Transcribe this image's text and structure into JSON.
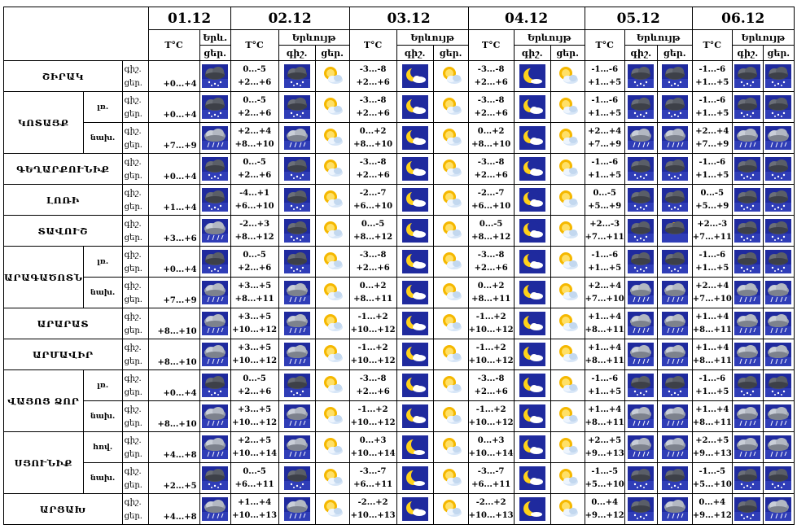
{
  "header": {
    "dates": [
      "01.12",
      "02.12",
      "03.12",
      "04.12",
      "05.12",
      "06.12"
    ],
    "temp_label": "T°C",
    "phenomenon_short": "Երև.",
    "phenomenon": "Երևույթ",
    "night": "գիշ.",
    "day": "ցեր."
  },
  "regions": [
    {
      "name": "ՇԻՐԱԿ",
      "rows": [
        {
          "sub": "",
          "d1": "+0...+4",
          "d1_icon": "cloud-snow",
          "days": [
            {
              "n": "0...-5",
              "d": "+2...+6",
              "icons": [
                "cloud-snow",
                "sun-cloud"
              ]
            },
            {
              "n": "-3...-8",
              "d": "+2...+6",
              "icons": [
                "moon-cloud",
                "sun-cloud"
              ]
            },
            {
              "n": "-3...-8",
              "d": "+2...+6",
              "icons": [
                "moon",
                "sun-cloud"
              ]
            },
            {
              "n": "-1...-6",
              "d": "+1...+5",
              "icons": [
                "cloud-snow",
                "cloud-snow"
              ]
            },
            {
              "n": "-1...-6",
              "d": "+1...+5",
              "icons": [
                "cloud-snow",
                "cloud-snow"
              ]
            }
          ]
        }
      ]
    },
    {
      "name": "ԿՈՏԱՅՔ",
      "rows": [
        {
          "sub": "լռ.",
          "d1": "+0...+4",
          "d1_icon": "cloud-snow",
          "days": [
            {
              "n": "0...-5",
              "d": "+2...+6",
              "icons": [
                "cloud-snow",
                "sun-cloud"
              ]
            },
            {
              "n": "-3...-8",
              "d": "+2...+6",
              "icons": [
                "moon-cloud",
                "sun-cloud"
              ]
            },
            {
              "n": "-3...-8",
              "d": "+2...+6",
              "icons": [
                "moon-cloud",
                "sun-cloud"
              ]
            },
            {
              "n": "-1...-6",
              "d": "+1...+5",
              "icons": [
                "cloud-snow",
                "cloud-snow"
              ]
            },
            {
              "n": "-1...-6",
              "d": "+1...+5",
              "icons": [
                "cloud-snow",
                "cloud-snow"
              ]
            }
          ]
        },
        {
          "sub": "նախ.",
          "d1": "+7...+9",
          "d1_icon": "cloud-rain",
          "days": [
            {
              "n": "+2...+4",
              "d": "+8...+10",
              "icons": [
                "cloud-rain",
                "sun-cloud"
              ]
            },
            {
              "n": "0...+2",
              "d": "+8...+10",
              "icons": [
                "moon-cloud",
                "sun-cloud"
              ]
            },
            {
              "n": "0...+2",
              "d": "+8...+10",
              "icons": [
                "moon-cloud",
                "sun-cloud"
              ]
            },
            {
              "n": "+2...+4",
              "d": "+7...+9",
              "icons": [
                "cloud-rain",
                "cloud-rain"
              ]
            },
            {
              "n": "+2...+4",
              "d": "+7...+9",
              "icons": [
                "cloud-rain",
                "cloud-rain"
              ]
            }
          ]
        }
      ]
    },
    {
      "name": "ԳԵՂԱՐՔՈՒՆԻՔ",
      "rows": [
        {
          "sub": "",
          "d1": "+0...+4",
          "d1_icon": "cloud-snow",
          "days": [
            {
              "n": "0...-5",
              "d": "+2...+6",
              "icons": [
                "cloud-snow",
                "sun-cloud"
              ]
            },
            {
              "n": "-3...-8",
              "d": "+2...+6",
              "icons": [
                "moon-cloud",
                "sun-cloud"
              ]
            },
            {
              "n": "-3...-8",
              "d": "+2...+6",
              "icons": [
                "moon-cloud",
                "sun-cloud"
              ]
            },
            {
              "n": "-1...-6",
              "d": "+1...+5",
              "icons": [
                "cloud-snow",
                "cloud-snow"
              ]
            },
            {
              "n": "-1...-6",
              "d": "+1...+5",
              "icons": [
                "cloud-snow",
                "cloud-snow"
              ]
            }
          ]
        }
      ]
    },
    {
      "name": "ԼՈՌԻ",
      "rows": [
        {
          "sub": "",
          "d1": "+1...+4",
          "d1_icon": "cloud-snow",
          "days": [
            {
              "n": "-4...+1",
              "d": "+6...+10",
              "icons": [
                "cloud-snow",
                "sun-cloud"
              ]
            },
            {
              "n": "-2...-7",
              "d": "+6...+10",
              "icons": [
                "moon-cloud",
                "sun-cloud"
              ]
            },
            {
              "n": "-2...-7",
              "d": "+6...+10",
              "icons": [
                "moon-cloud",
                "sun-cloud"
              ]
            },
            {
              "n": "0...-5",
              "d": "+5...+9",
              "icons": [
                "cloud-snow",
                "cloud-snow"
              ]
            },
            {
              "n": "0...-5",
              "d": "+5...+9",
              "icons": [
                "cloud-snow",
                "cloud-snow"
              ]
            }
          ]
        }
      ]
    },
    {
      "name": "ՏԱՎՈՒՇ",
      "rows": [
        {
          "sub": "",
          "d1": "+3...+6",
          "d1_icon": "cloud-rain",
          "days": [
            {
              "n": "-2...+3",
              "d": "+8...+12",
              "icons": [
                "cloud-snow",
                "sun-cloud"
              ]
            },
            {
              "n": "0...-5",
              "d": "+8...+12",
              "icons": [
                "moon-cloud",
                "sun-cloud"
              ]
            },
            {
              "n": "0...-5",
              "d": "+8...+12",
              "icons": [
                "moon-cloud",
                "sun-cloud"
              ]
            },
            {
              "n": "+2...-3",
              "d": "+7...+11",
              "icons": [
                "cloud-snow",
                "sun-cloud-dark"
              ]
            },
            {
              "n": "+2...-3",
              "d": "+7...+11",
              "icons": [
                "cloud-snow",
                "cloud-snow"
              ]
            }
          ]
        }
      ]
    },
    {
      "name": "ԱՐԱԳԱԾՈՏՆ",
      "rows": [
        {
          "sub": "լռ.",
          "d1": "+0...+4",
          "d1_icon": "cloud-snow",
          "days": [
            {
              "n": "0...-5",
              "d": "+2...+6",
              "icons": [
                "cloud-snow",
                "sun-cloud"
              ]
            },
            {
              "n": "-3...-8",
              "d": "+2...+6",
              "icons": [
                "moon-cloud",
                "sun-cloud"
              ]
            },
            {
              "n": "-3...-8",
              "d": "+2...+6",
              "icons": [
                "moon-cloud",
                "sun-cloud"
              ]
            },
            {
              "n": "-1...-6",
              "d": "+1...+5",
              "icons": [
                "cloud-snow",
                "cloud-snow"
              ]
            },
            {
              "n": "-1...-6",
              "d": "+1...+5",
              "icons": [
                "cloud-snow",
                "cloud-snow"
              ]
            }
          ]
        },
        {
          "sub": "նախ.",
          "d1": "+7...+9",
          "d1_icon": "cloud-rain",
          "days": [
            {
              "n": "+3...+5",
              "d": "+8...+11",
              "icons": [
                "cloud-rain",
                "sun-cloud"
              ]
            },
            {
              "n": "0...+2",
              "d": "+8...+11",
              "icons": [
                "moon-cloud",
                "sun-cloud"
              ]
            },
            {
              "n": "0...+2",
              "d": "+8...+11",
              "icons": [
                "moon-cloud",
                "sun-cloud"
              ]
            },
            {
              "n": "+2...+4",
              "d": "+7...+10",
              "icons": [
                "cloud-rain",
                "cloud-rain"
              ]
            },
            {
              "n": "+2...+4",
              "d": "+7...+10",
              "icons": [
                "cloud-rain",
                "cloud-rain"
              ]
            }
          ]
        }
      ]
    },
    {
      "name": "ԱՐԱՐԱՏ",
      "rows": [
        {
          "sub": "",
          "d1": "+8...+10",
          "d1_icon": "cloud-rain",
          "days": [
            {
              "n": "+3...+5",
              "d": "+10...+12",
              "icons": [
                "cloud-rain",
                "sun-cloud"
              ]
            },
            {
              "n": "-1...+2",
              "d": "+10...+12",
              "icons": [
                "moon-cloud",
                "sun-cloud"
              ]
            },
            {
              "n": "-1...+2",
              "d": "+10...+12",
              "icons": [
                "moon-cloud",
                "sun-cloud"
              ]
            },
            {
              "n": "+1...+4",
              "d": "+8...+11",
              "icons": [
                "cloud-rain",
                "cloud-rain"
              ]
            },
            {
              "n": "+1...+4",
              "d": "+8...+11",
              "icons": [
                "cloud-rain",
                "cloud-rain"
              ]
            }
          ]
        }
      ]
    },
    {
      "name": "ԱՐՄԱՎԻՐ",
      "rows": [
        {
          "sub": "",
          "d1": "+8...+10",
          "d1_icon": "cloud-rain",
          "days": [
            {
              "n": "+3...+5",
              "d": "+10...+12",
              "icons": [
                "cloud-rain",
                "sun-cloud"
              ]
            },
            {
              "n": "-1...+2",
              "d": "+10...+12",
              "icons": [
                "moon-cloud",
                "sun-cloud"
              ]
            },
            {
              "n": "-1...+2",
              "d": "+10...+12",
              "icons": [
                "moon-cloud",
                "sun-cloud"
              ]
            },
            {
              "n": "+1...+4",
              "d": "+8...+11",
              "icons": [
                "cloud-rain",
                "cloud-rain"
              ]
            },
            {
              "n": "+1...+4",
              "d": "+8...+11",
              "icons": [
                "cloud-rain",
                "cloud-rain"
              ]
            }
          ]
        }
      ]
    },
    {
      "name": "ՎԱՅՈՑ ՁՈՐ",
      "rows": [
        {
          "sub": "լռ.",
          "d1": "+0...+4",
          "d1_icon": "cloud-snow",
          "days": [
            {
              "n": "0...-5",
              "d": "+2...+6",
              "icons": [
                "cloud-snow",
                "sun-cloud"
              ]
            },
            {
              "n": "-3...-8",
              "d": "+2...+6",
              "icons": [
                "moon-cloud",
                "sun-cloud"
              ]
            },
            {
              "n": "-3...-8",
              "d": "+2...+6",
              "icons": [
                "moon-cloud",
                "sun-cloud"
              ]
            },
            {
              "n": "-1...-6",
              "d": "+1...+5",
              "icons": [
                "cloud-snow",
                "cloud-snow"
              ]
            },
            {
              "n": "-1...-6",
              "d": "+1...+5",
              "icons": [
                "cloud-snow",
                "cloud-snow"
              ]
            }
          ]
        },
        {
          "sub": "նախ.",
          "d1": "+8...+10",
          "d1_icon": "cloud-rain",
          "days": [
            {
              "n": "+3...+5",
              "d": "+10...+12",
              "icons": [
                "cloud-rain",
                "sun-cloud"
              ]
            },
            {
              "n": "-1...+2",
              "d": "+10...+12",
              "icons": [
                "moon-cloud",
                "sun-cloud"
              ]
            },
            {
              "n": "-1...+2",
              "d": "+10...+12",
              "icons": [
                "moon-cloud",
                "sun-cloud"
              ]
            },
            {
              "n": "+1...+4",
              "d": "+8...+11",
              "icons": [
                "cloud-rain",
                "cloud-rain"
              ]
            },
            {
              "n": "+1...+4",
              "d": "+8...+11",
              "icons": [
                "cloud-rain",
                "cloud-rain"
              ]
            }
          ]
        }
      ]
    },
    {
      "name": "ՍՅՈՒՆԻՔ",
      "rows": [
        {
          "sub": "հով.",
          "d1": "+4...+8",
          "d1_icon": "cloud-rain",
          "days": [
            {
              "n": "+2...+5",
              "d": "+10...+14",
              "icons": [
                "cloud-rain",
                "sun-cloud"
              ]
            },
            {
              "n": "0...+3",
              "d": "+10...+14",
              "icons": [
                "moon",
                "sun-cloud"
              ]
            },
            {
              "n": "0...+3",
              "d": "+10...+14",
              "icons": [
                "moon-cloud",
                "sun-cloud"
              ]
            },
            {
              "n": "+2...+5",
              "d": "+9...+13",
              "icons": [
                "cloud-rain",
                "cloud-rain"
              ]
            },
            {
              "n": "+2...+5",
              "d": "+9...+13",
              "icons": [
                "cloud-rain",
                "cloud-rain"
              ]
            }
          ]
        },
        {
          "sub": "նախ.",
          "d1": "+2...+5",
          "d1_icon": "cloud-snow",
          "days": [
            {
              "n": "0...-5",
              "d": "+6...+11",
              "icons": [
                "cloud-snow",
                "sun-cloud"
              ]
            },
            {
              "n": "-3...-7",
              "d": "+6...+11",
              "icons": [
                "moon",
                "sun-cloud"
              ]
            },
            {
              "n": "-3...-7",
              "d": "+6...+11",
              "icons": [
                "moon-cloud",
                "sun-cloud"
              ]
            },
            {
              "n": "-1...-5",
              "d": "+5...+10",
              "icons": [
                "cloud-snow",
                "cloud-snow"
              ]
            },
            {
              "n": "-1...-5",
              "d": "+5...+10",
              "icons": [
                "cloud-snow",
                "cloud-snow"
              ]
            }
          ]
        }
      ]
    },
    {
      "name": "ԱՐՑԱԽ",
      "rows": [
        {
          "sub": "",
          "d1": "+4...+8",
          "d1_icon": "cloud-rain",
          "days": [
            {
              "n": "+1...+4",
              "d": "+10...+13",
              "icons": [
                "cloud-rain",
                "sun-cloud"
              ]
            },
            {
              "n": "-2...+2",
              "d": "+10...+13",
              "icons": [
                "moon-cloud",
                "sun-cloud"
              ]
            },
            {
              "n": "-2...+2",
              "d": "+10...+13",
              "icons": [
                "moon",
                "sun-cloud"
              ]
            },
            {
              "n": "0...+4",
              "d": "+9...+12",
              "icons": [
                "cloud-snow",
                "cloud-rain"
              ]
            },
            {
              "n": "0...+4",
              "d": "+9...+12",
              "icons": [
                "cloud-snow",
                "cloud-rain"
              ]
            }
          ]
        }
      ]
    }
  ],
  "colors": {
    "icon_bg": "#1f2a9e",
    "sun": "#f5b800",
    "moon": "#ffd21a",
    "cloud": "#c8ccd6"
  }
}
